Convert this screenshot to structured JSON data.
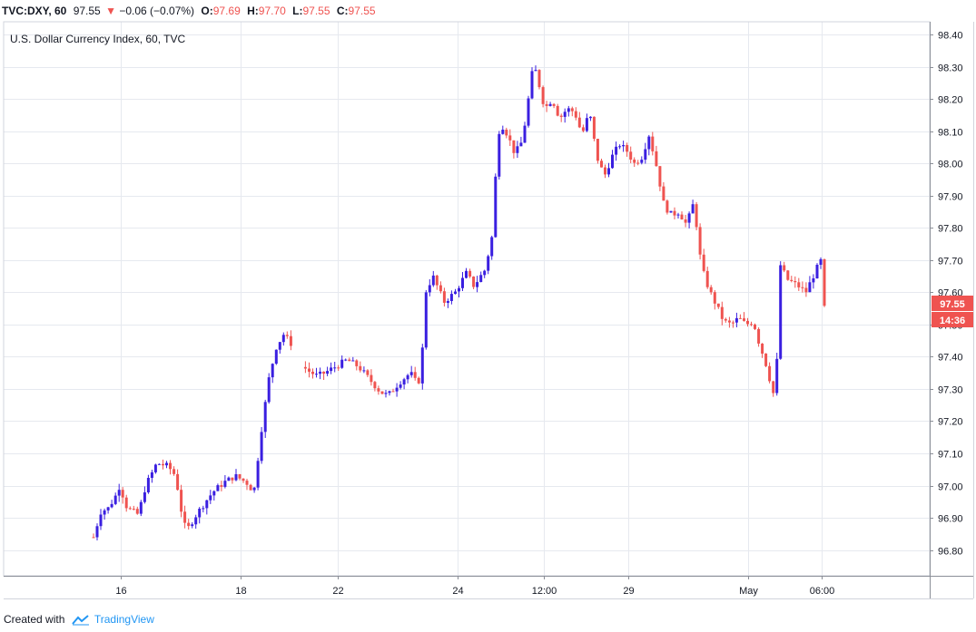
{
  "header": {
    "symbol": "TVC:DXY, 60",
    "last": "97.55",
    "arrow": "▼",
    "change": "−0.06 (−0.07%)",
    "o_label": "O:",
    "o_value": "97.69",
    "h_label": "H:",
    "h_value": "97.70",
    "l_label": "L:",
    "l_value": "97.55",
    "c_label": "C:",
    "c_value": "97.55"
  },
  "footer": {
    "created_with": "Created with",
    "brand": "TradingView"
  },
  "colors": {
    "up": "#3a1fe0",
    "down": "#ef5350",
    "grid": "#e6e9ef",
    "axis": "#8a8e97"
  },
  "chart_data": {
    "type": "candlestick",
    "title": "U.S. Dollar Currency Index, 60, TVC",
    "ylim": [
      96.72,
      98.44
    ],
    "y_ticks": [
      "98.40",
      "98.30",
      "98.20",
      "98.10",
      "98.00",
      "97.90",
      "97.80",
      "97.70",
      "97.60",
      "97.50",
      "97.40",
      "97.30",
      "97.20",
      "97.10",
      "97.00",
      "96.90",
      "96.80"
    ],
    "x_ticks": [
      "16",
      "18",
      "22",
      "24",
      "12:00",
      "29",
      "May",
      "06:00"
    ],
    "last_price_label": "97.55",
    "countdown_label": "14:36",
    "price_path": [
      [
        0.0,
        96.84
      ],
      [
        0.01,
        96.92
      ],
      [
        0.02,
        96.93
      ],
      [
        0.03,
        96.97
      ],
      [
        0.035,
        97.0
      ],
      [
        0.045,
        96.93
      ],
      [
        0.06,
        96.91
      ],
      [
        0.07,
        97.0
      ],
      [
        0.085,
        97.07
      ],
      [
        0.1,
        97.06
      ],
      [
        0.11,
        97.03
      ],
      [
        0.12,
        96.89
      ],
      [
        0.125,
        96.86
      ],
      [
        0.135,
        96.9
      ],
      [
        0.15,
        96.95
      ],
      [
        0.16,
        96.98
      ],
      [
        0.175,
        97.01
      ],
      [
        0.19,
        97.03
      ],
      [
        0.205,
        97.01
      ],
      [
        0.215,
        96.98
      ],
      [
        0.225,
        97.17
      ],
      [
        0.235,
        97.33
      ],
      [
        0.245,
        97.43
      ],
      [
        0.255,
        97.47
      ],
      [
        0.265,
        97.44
      ],
      [
        0.285,
        97.36
      ],
      [
        0.3,
        97.34
      ],
      [
        0.31,
        97.35
      ],
      [
        0.325,
        97.37
      ],
      [
        0.34,
        97.39
      ],
      [
        0.355,
        97.37
      ],
      [
        0.37,
        97.33
      ],
      [
        0.385,
        97.29
      ],
      [
        0.395,
        97.28
      ],
      [
        0.41,
        97.32
      ],
      [
        0.425,
        97.35
      ],
      [
        0.435,
        97.31
      ],
      [
        0.44,
        97.38
      ],
      [
        0.445,
        97.6
      ],
      [
        0.455,
        97.65
      ],
      [
        0.47,
        97.57
      ],
      [
        0.485,
        97.6
      ],
      [
        0.5,
        97.66
      ],
      [
        0.51,
        97.62
      ],
      [
        0.525,
        97.67
      ],
      [
        0.535,
        97.78
      ],
      [
        0.54,
        98.0
      ],
      [
        0.545,
        98.13
      ],
      [
        0.555,
        98.09
      ],
      [
        0.565,
        98.03
      ],
      [
        0.575,
        98.07
      ],
      [
        0.58,
        98.15
      ],
      [
        0.59,
        98.31
      ],
      [
        0.595,
        98.27
      ],
      [
        0.605,
        98.17
      ],
      [
        0.615,
        98.2
      ],
      [
        0.625,
        98.14
      ],
      [
        0.635,
        98.17
      ],
      [
        0.645,
        98.16
      ],
      [
        0.655,
        98.09
      ],
      [
        0.665,
        98.16
      ],
      [
        0.675,
        98.02
      ],
      [
        0.685,
        97.96
      ],
      [
        0.695,
        98.02
      ],
      [
        0.705,
        98.06
      ],
      [
        0.715,
        98.04
      ],
      [
        0.725,
        98.0
      ],
      [
        0.735,
        98.02
      ],
      [
        0.745,
        98.09
      ],
      [
        0.755,
        97.99
      ],
      [
        0.765,
        97.87
      ],
      [
        0.775,
        97.84
      ],
      [
        0.785,
        97.85
      ],
      [
        0.795,
        97.81
      ],
      [
        0.805,
        97.88
      ],
      [
        0.815,
        97.68
      ],
      [
        0.825,
        97.61
      ],
      [
        0.835,
        97.56
      ],
      [
        0.845,
        97.51
      ],
      [
        0.855,
        97.5
      ],
      [
        0.865,
        97.52
      ],
      [
        0.875,
        97.5
      ],
      [
        0.885,
        97.51
      ],
      [
        0.89,
        97.46
      ],
      [
        0.9,
        97.39
      ],
      [
        0.905,
        97.35
      ],
      [
        0.91,
        97.29
      ],
      [
        0.915,
        97.28
      ],
      [
        0.92,
        97.69
      ],
      [
        0.93,
        97.64
      ],
      [
        0.945,
        97.62
      ],
      [
        0.955,
        97.6
      ],
      [
        0.965,
        97.65
      ],
      [
        0.975,
        97.7
      ],
      [
        0.98,
        97.55
      ]
    ]
  }
}
